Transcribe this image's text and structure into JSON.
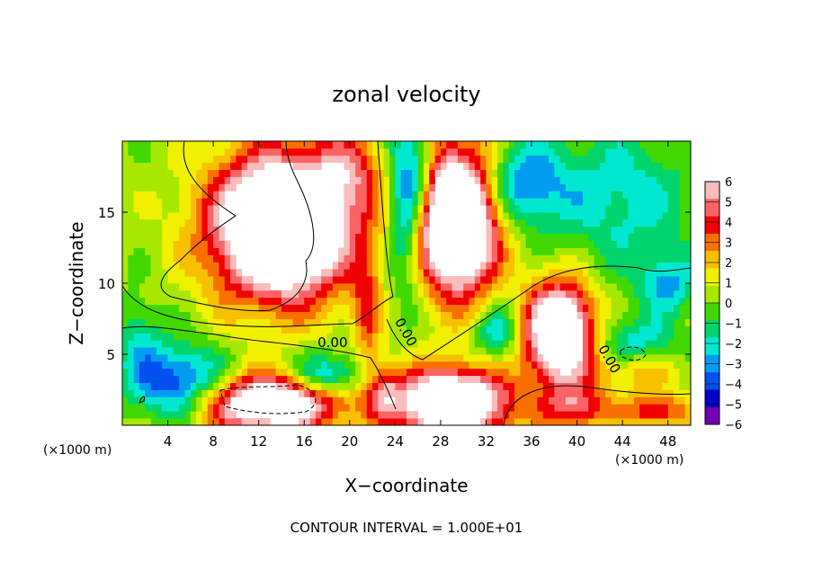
{
  "chart_data": {
    "type": "heatmap",
    "title": "zonal velocity",
    "xlabel": "X−coordinate",
    "ylabel": "Z−coordinate",
    "x_unit_left": "(×1000 m)",
    "x_unit_right": "(×1000 m)",
    "footer": "CONTOUR INTERVAL = 1.000E+01",
    "xlim": [
      0,
      50
    ],
    "ylim": [
      0,
      20
    ],
    "x_ticks": [
      4,
      8,
      12,
      16,
      20,
      24,
      28,
      32,
      36,
      40,
      44,
      48
    ],
    "x_tick_labels": [
      "4",
      "8",
      "12",
      "16",
      "20",
      "24",
      "28",
      "32",
      "36",
      "40",
      "44",
      "48"
    ],
    "y_ticks": [
      5,
      10,
      15
    ],
    "y_tick_labels": [
      "5",
      "10",
      "15"
    ],
    "colorbar": {
      "min": -6,
      "max": 6,
      "ticks": [
        6,
        5,
        4,
        3,
        2,
        1,
        0,
        -1,
        -2,
        -3,
        -4,
        -5,
        -6
      ],
      "tick_labels": [
        "6",
        "5",
        "4",
        "3",
        "2",
        "1",
        "0",
        "−1",
        "−2",
        "−3",
        "−4",
        "−5",
        "−6"
      ],
      "colors": [
        "#fabcbc",
        "#fa6464",
        "#f00000",
        "#fa7000",
        "#f8c000",
        "#f0f000",
        "#a8e800",
        "#40d800",
        "#00d46c",
        "#00e8d0",
        "#009cf0",
        "#0050f0",
        "#0000c8",
        "#7000b0"
      ]
    },
    "contour_labels": [
      {
        "text": "0.00",
        "x": 18.5,
        "y": 5.5
      },
      {
        "text": "0.00",
        "x": 24.6,
        "y": 6.4
      },
      {
        "text": "0.00",
        "x": 42.5,
        "y": 4.5
      }
    ],
    "field": {
      "base": 0.3,
      "features": [
        {
          "x": 14,
          "y": 14,
          "sx": 6,
          "sy": 5,
          "a": 12
        },
        {
          "x": 20,
          "y": 18,
          "sx": 3,
          "sy": 3,
          "a": 3
        },
        {
          "x": 29.5,
          "y": 14.5,
          "sx": 3.5,
          "sy": 5,
          "a": 12
        },
        {
          "x": 29,
          "y": 1.5,
          "sx": 5,
          "sy": 2.5,
          "a": 10
        },
        {
          "x": 38.5,
          "y": 6.5,
          "sx": 3,
          "sy": 3.5,
          "a": 10
        },
        {
          "x": 13,
          "y": 1.5,
          "sx": 6,
          "sy": 2,
          "a": 9
        },
        {
          "x": 40,
          "y": 1.2,
          "sx": 3,
          "sy": 1.5,
          "a": 4
        },
        {
          "x": 47,
          "y": 1.0,
          "sx": 3,
          "sy": 1.2,
          "a": 4
        },
        {
          "x": 23,
          "y": 2.5,
          "sx": 1.5,
          "sy": 2,
          "a": 3
        },
        {
          "x": 25,
          "y": 16,
          "sx": 1.6,
          "sy": 6,
          "a": -5
        },
        {
          "x": 26.5,
          "y": 18,
          "sx": 1.2,
          "sy": 3,
          "a": -2
        },
        {
          "x": 35,
          "y": 17,
          "sx": 4,
          "sy": 3,
          "a": -4
        },
        {
          "x": 44,
          "y": 16,
          "sx": 6,
          "sy": 5,
          "a": -2.5
        },
        {
          "x": 48,
          "y": 10,
          "sx": 2.5,
          "sy": 2,
          "a": -3
        },
        {
          "x": 5,
          "y": 3,
          "sx": 4,
          "sy": 2.5,
          "a": -5
        },
        {
          "x": 18,
          "y": 3.5,
          "sx": 3,
          "sy": 1.5,
          "a": -4
        },
        {
          "x": 1.5,
          "y": 6,
          "sx": 2,
          "sy": 3,
          "a": -2
        },
        {
          "x": 33,
          "y": 6.5,
          "sx": 2,
          "sy": 2,
          "a": -3
        },
        {
          "x": 45,
          "y": 4,
          "sx": 4,
          "sy": 1.5,
          "a": 3
        },
        {
          "x": 45,
          "y": 5.5,
          "sx": 4,
          "sy": 2,
          "a": -3
        },
        {
          "x": 21.5,
          "y": 8,
          "sx": 1.2,
          "sy": 4,
          "a": 3
        }
      ]
    }
  }
}
